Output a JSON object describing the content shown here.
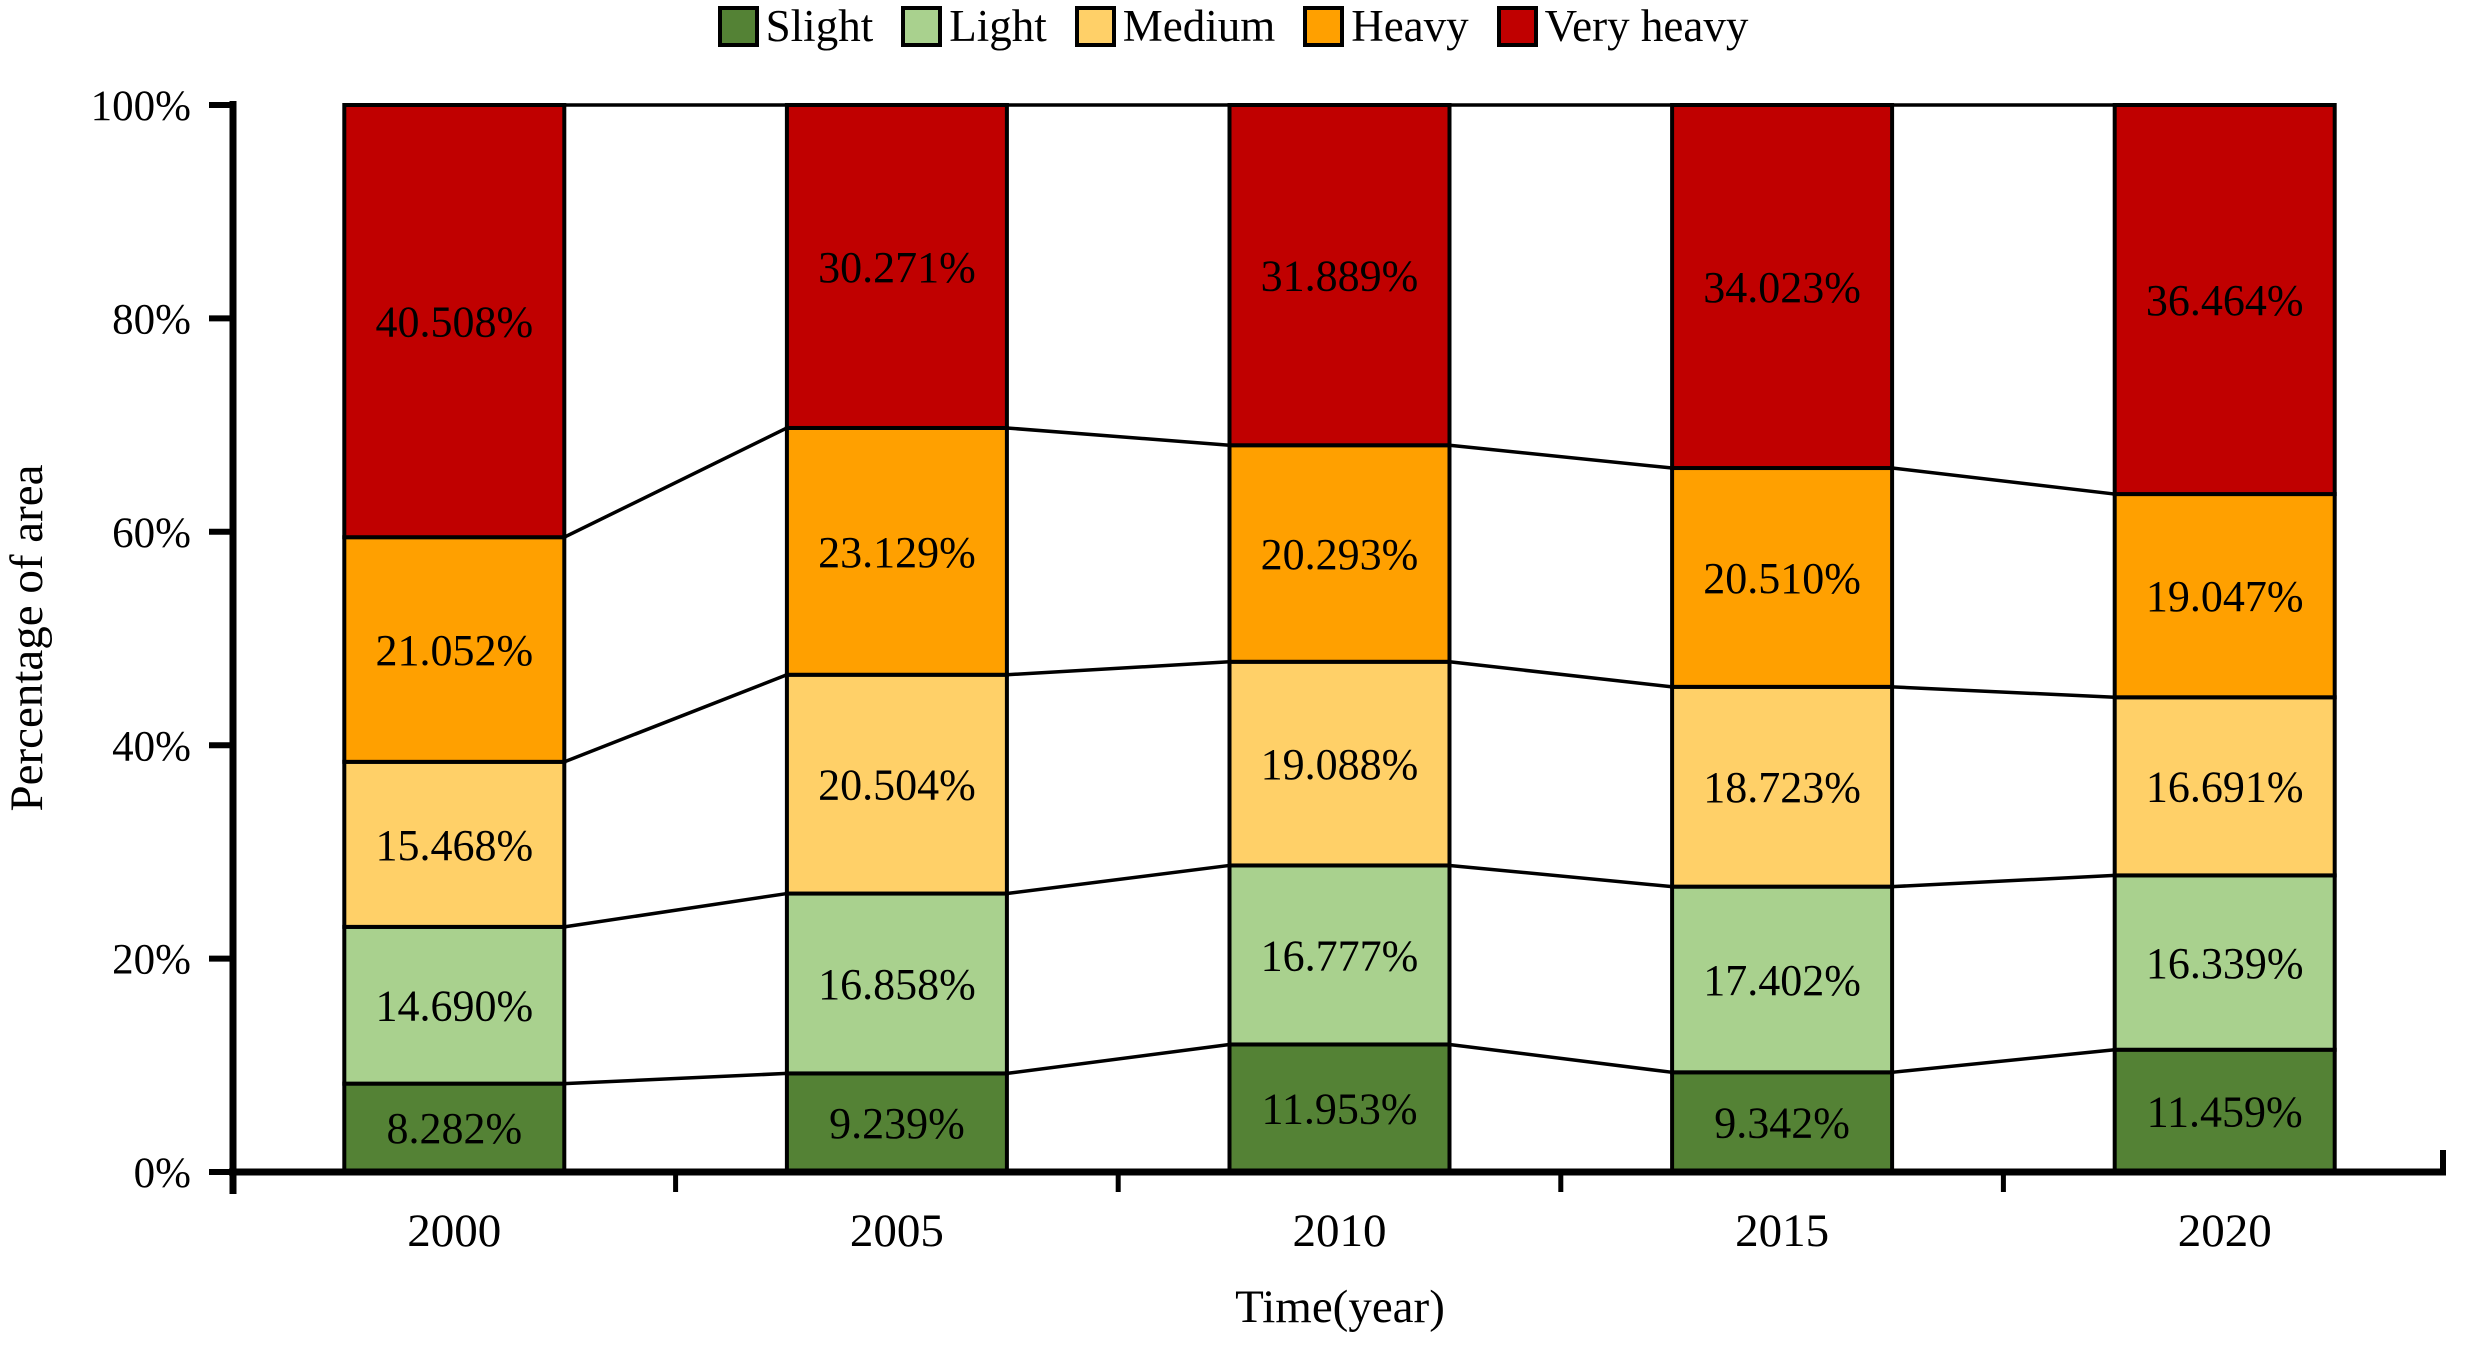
{
  "chart_data": {
    "type": "bar",
    "stacked": true,
    "categories": [
      "2000",
      "2005",
      "2010",
      "2015",
      "2020"
    ],
    "series": [
      {
        "name": "Slight",
        "color": "#548235",
        "values": [
          8.282,
          9.239,
          11.953,
          9.342,
          11.459
        ]
      },
      {
        "name": "Light",
        "color": "#A9D18E",
        "values": [
          14.69,
          16.858,
          16.777,
          17.402,
          16.339
        ]
      },
      {
        "name": "Medium",
        "color": "#FFD068",
        "values": [
          15.468,
          20.504,
          19.088,
          18.723,
          16.691
        ]
      },
      {
        "name": "Heavy",
        "color": "#FFA000",
        "values": [
          21.052,
          23.129,
          20.293,
          20.51,
          19.047
        ]
      },
      {
        "name": "Very heavy",
        "color": "#C00000",
        "values": [
          40.508,
          30.271,
          31.889,
          34.023,
          36.464
        ]
      }
    ],
    "value_suffix": "%",
    "xlabel": "Time(year)",
    "ylabel": "Percentage of area",
    "ylim": [
      0,
      100
    ],
    "y_ticks": [
      "0%",
      "20%",
      "40%",
      "60%",
      "80%",
      "100%"
    ],
    "legend_position": "top",
    "series_lines": true,
    "bar_border_color": "#000000",
    "line_color": "#000000",
    "background": "#FFFFFF"
  }
}
